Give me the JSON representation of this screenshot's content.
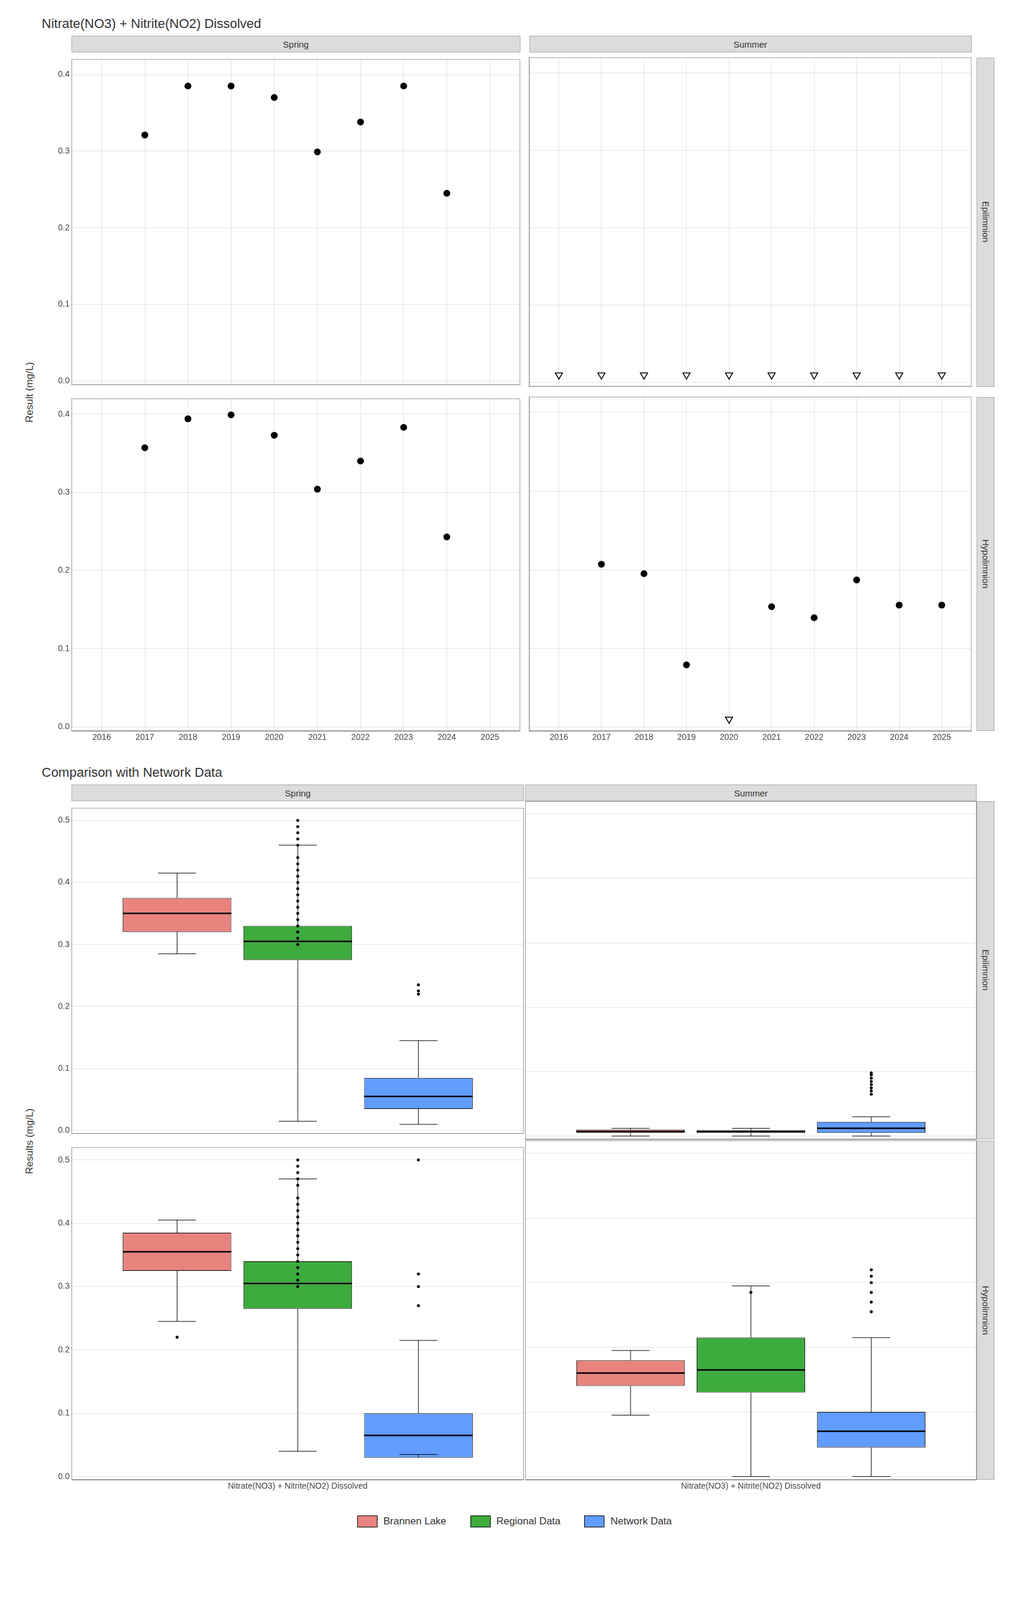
{
  "chart_data": [
    {
      "type": "scatter",
      "title": "Nitrate(NO3) + Nitrite(NO2) Dissolved",
      "ylabel": "Result (mg/L)",
      "columns": [
        "Spring",
        "Summer"
      ],
      "rows": [
        "Epilimnion",
        "Hypolimnion"
      ],
      "xlim": [
        2015.3,
        2025.7
      ],
      "xticks": [
        2016,
        2017,
        2018,
        2019,
        2020,
        2021,
        2022,
        2023,
        2024,
        2025
      ],
      "ylim": [
        -0.005,
        0.42
      ],
      "yticks": [
        {
          "value": 0,
          "label": "0.0"
        },
        0.1,
        0.2,
        0.3,
        0.4
      ],
      "grid": true,
      "panels": [
        {
          "tick_labels": "y",
          "series": [
            {
              "color": "#000000",
              "marker": "circle",
              "x": [
                2017,
                2018,
                2019,
                2020,
                2021,
                2022,
                2023,
                2024
              ],
              "values": [
                0.321,
                0.385,
                0.385,
                0.37,
                0.299,
                0.338,
                0.385,
                0.245
              ]
            }
          ]
        },
        {
          "tick_labels": false,
          "series": [
            {
              "color": "#000000",
              "marker": "triangle_down",
              "x": [
                2016,
                2017,
                2018,
                2019,
                2020,
                2021,
                2022,
                2023,
                2024,
                2025
              ],
              "values": [
                0.01,
                0.01,
                0.01,
                0.01,
                0.01,
                0.01,
                0.01,
                0.01,
                0.01,
                0.01
              ]
            }
          ]
        },
        {
          "series": [
            {
              "color": "#000000",
              "marker": "circle",
              "x": [
                2017,
                2018,
                2019,
                2020,
                2021,
                2022,
                2023,
                2024
              ],
              "values": [
                0.357,
                0.394,
                0.399,
                0.373,
                0.304,
                0.34,
                0.383,
                0.243
              ]
            }
          ]
        },
        {
          "tick_labels": "x",
          "series": [
            {
              "color": "#000000",
              "marker": "triangle_down",
              "x": [
                2020
              ],
              "values": [
                0.01
              ]
            },
            {
              "color": "#000000",
              "marker": "circle",
              "x": [
                2017,
                2018,
                2019,
                2021,
                2022,
                2023,
                2024,
                2025
              ],
              "values": [
                0.207,
                0.195,
                0.079,
                0.153,
                0.139,
                0.187,
                0.155,
                0.155
              ]
            }
          ]
        }
      ]
    },
    {
      "type": "box",
      "title": "Comparison with Network Data",
      "ylabel": "Results (mg/L)",
      "columns": [
        "Spring",
        "Summer"
      ],
      "rows": [
        "Epilimnion",
        "Hypolimnion"
      ],
      "ylim": [
        -0.005,
        0.52
      ],
      "yticks": [
        {
          "value": 0,
          "label": "0.0"
        },
        0.1,
        0.2,
        0.3,
        0.4,
        0.5
      ],
      "grid": "y",
      "legend": "bottom",
      "panels": [
        {
          "tick_labels": "y",
          "categories": [
            "Nitrate(NO3) + Nitrite(NO2) Dissolved"
          ],
          "series": [
            {
              "name": "Brannen Lake",
              "color": "#E8837D",
              "q1": 0.32,
              "median": 0.35,
              "q3": 0.375,
              "whisker_low": 0.285,
              "whisker_high": 0.415,
              "outliers": []
            },
            {
              "name": "Regional Data",
              "color": "#3EAB3E",
              "q1": 0.275,
              "median": 0.305,
              "q3": 0.33,
              "whisker_low": 0.015,
              "whisker_high": 0.46,
              "outliers": [
                0.49,
                0.48,
                0.47,
                0.46,
                0.44,
                0.43,
                0.42,
                0.41,
                0.4,
                0.39,
                0.38,
                0.37,
                0.36,
                0.35,
                0.34,
                0.33,
                0.32,
                0.31,
                0.3,
                0.5
              ]
            },
            {
              "name": "Network Data",
              "color": "#619CFF",
              "q1": 0.035,
              "median": 0.055,
              "q3": 0.085,
              "whisker_low": 0.01,
              "whisker_high": 0.145,
              "outliers": [
                0.22,
                0.225,
                0.235
              ]
            }
          ]
        },
        {
          "tick_labels": false,
          "categories": [
            "Nitrate(NO3) + Nitrite(NO2) Dissolved"
          ],
          "series": [
            {
              "name": "Brannen Lake",
              "color": "#E8837D",
              "q1": 0.005,
              "median": 0.007,
              "q3": 0.01,
              "whisker_low": 0.0,
              "whisker_high": 0.012,
              "outliers": []
            },
            {
              "name": "Regional Data",
              "color": "#3EAB3E",
              "q1": 0.005,
              "median": 0.007,
              "q3": 0.009,
              "whisker_low": 0.0,
              "whisker_high": 0.012,
              "outliers": []
            },
            {
              "name": "Network Data",
              "color": "#619CFF",
              "q1": 0.005,
              "median": 0.012,
              "q3": 0.022,
              "whisker_low": 0.0,
              "whisker_high": 0.03,
              "outliers": [
                0.065,
                0.07,
                0.075,
                0.08,
                0.085,
                0.09,
                0.095,
                0.098
              ]
            }
          ]
        },
        {
          "categories": [
            "Nitrate(NO3) + Nitrite(NO2) Dissolved"
          ],
          "series": [
            {
              "name": "Brannen Lake",
              "color": "#E8837D",
              "q1": 0.325,
              "median": 0.355,
              "q3": 0.385,
              "whisker_low": 0.245,
              "whisker_high": 0.405,
              "outliers": [
                0.22
              ]
            },
            {
              "name": "Regional Data",
              "color": "#3EAB3E",
              "q1": 0.265,
              "median": 0.305,
              "q3": 0.34,
              "whisker_low": 0.04,
              "whisker_high": 0.47,
              "outliers": [
                0.49,
                0.48,
                0.47,
                0.46,
                0.44,
                0.43,
                0.42,
                0.41,
                0.4,
                0.39,
                0.38,
                0.37,
                0.36,
                0.35,
                0.34,
                0.33,
                0.32,
                0.31,
                0.3,
                0.5
              ]
            },
            {
              "name": "Network Data",
              "color": "#619CFF",
              "q1": 0.03,
              "median": 0.065,
              "q3": 0.1,
              "whisker_low": 0.035,
              "whisker_high": 0.215,
              "outliers": [
                0.27,
                0.3,
                0.32,
                0.5
              ]
            }
          ]
        },
        {
          "tick_labels": "x",
          "categories": [
            "Nitrate(NO3) + Nitrite(NO2) Dissolved"
          ],
          "series": [
            {
              "name": "Brannen Lake",
              "color": "#E8837D",
              "q1": 0.14,
              "median": 0.16,
              "q3": 0.18,
              "whisker_low": 0.095,
              "whisker_high": 0.195,
              "outliers": []
            },
            {
              "name": "Regional Data",
              "color": "#3EAB3E",
              "q1": 0.13,
              "median": 0.165,
              "q3": 0.215,
              "whisker_low": 0.0,
              "whisker_high": 0.295,
              "outliers": [
                0.285
              ]
            },
            {
              "name": "Network Data",
              "color": "#619CFF",
              "q1": 0.045,
              "median": 0.07,
              "q3": 0.1,
              "whisker_low": 0.0,
              "whisker_high": 0.215,
              "outliers": [
                0.255,
                0.27,
                0.285,
                0.3,
                0.31,
                0.32
              ]
            }
          ]
        }
      ]
    }
  ]
}
